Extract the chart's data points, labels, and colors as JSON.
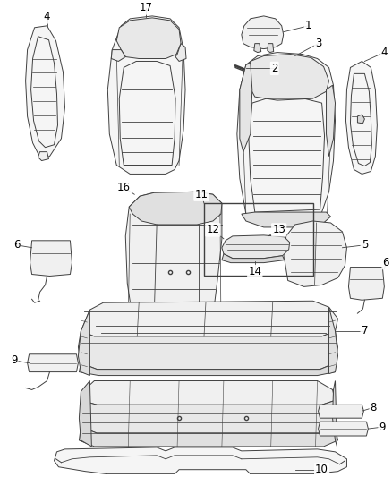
{
  "background_color": "#ffffff",
  "line_color": "#404040",
  "label_color": "#000000",
  "fig_width": 4.38,
  "fig_height": 5.33,
  "dpi": 100,
  "lw": 0.7,
  "label_fs": 8.5
}
